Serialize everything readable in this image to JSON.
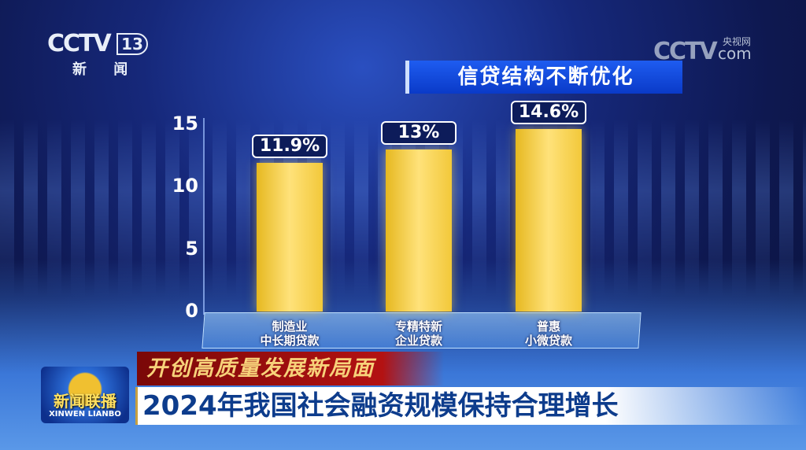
{
  "channel": {
    "logo": "CCTV",
    "number": "13",
    "name": "新 闻"
  },
  "watermark": {
    "logo": "CCTV",
    "sub": "央视网",
    "com": "com"
  },
  "chart_data": {
    "type": "bar",
    "title": "信贷结构不断优化",
    "categories": [
      [
        "制造业",
        "中长期贷款"
      ],
      [
        "专精特新",
        "企业贷款"
      ],
      [
        "普惠",
        "小微贷款"
      ]
    ],
    "values": [
      11.9,
      13,
      14.6
    ],
    "data_labels": [
      "11.9%",
      "13%",
      "14.6%"
    ],
    "yticks": [
      "0",
      "5",
      "10",
      "15"
    ],
    "ylim": [
      0,
      15
    ],
    "bar_color": "#f2c83a"
  },
  "program": {
    "cn": "新闻联播",
    "en": "XINWEN LIANBO"
  },
  "kicker": "开创高质量发展新局面",
  "headline": "2024年我国社会融资规模保持合理增长"
}
